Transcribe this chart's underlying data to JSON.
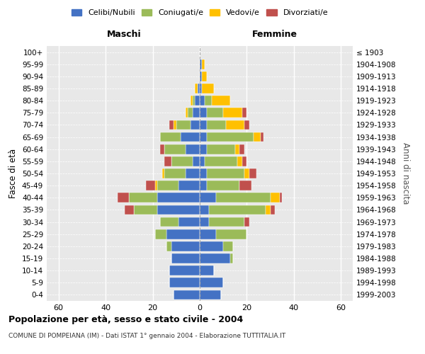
{
  "age_groups": [
    "0-4",
    "5-9",
    "10-14",
    "15-19",
    "20-24",
    "25-29",
    "30-34",
    "35-39",
    "40-44",
    "45-49",
    "50-54",
    "55-59",
    "60-64",
    "65-69",
    "70-74",
    "75-79",
    "80-84",
    "85-89",
    "90-94",
    "95-99",
    "100+"
  ],
  "birth_years": [
    "1999-2003",
    "1994-1998",
    "1989-1993",
    "1984-1988",
    "1979-1983",
    "1974-1978",
    "1969-1973",
    "1964-1968",
    "1959-1963",
    "1954-1958",
    "1949-1953",
    "1944-1948",
    "1939-1943",
    "1934-1938",
    "1929-1933",
    "1924-1928",
    "1919-1923",
    "1914-1918",
    "1909-1913",
    "1904-1908",
    "≤ 1903"
  ],
  "colors": {
    "celibi": "#4472C4",
    "coniugati": "#9BBB59",
    "vedovi": "#FFC000",
    "divorziati": "#C0504D"
  },
  "males": {
    "celibi": [
      11,
      13,
      13,
      12,
      12,
      14,
      9,
      18,
      18,
      9,
      6,
      3,
      6,
      8,
      4,
      3,
      2,
      1,
      0,
      0,
      0
    ],
    "coniugati": [
      0,
      0,
      0,
      0,
      2,
      5,
      8,
      10,
      12,
      9,
      9,
      9,
      9,
      9,
      6,
      2,
      1,
      0,
      0,
      0,
      0
    ],
    "vedovi": [
      0,
      0,
      0,
      0,
      0,
      0,
      0,
      0,
      0,
      1,
      1,
      0,
      0,
      0,
      1,
      1,
      1,
      1,
      0,
      0,
      0
    ],
    "divorziati": [
      0,
      0,
      0,
      0,
      0,
      0,
      0,
      4,
      5,
      4,
      0,
      3,
      2,
      0,
      2,
      0,
      0,
      0,
      0,
      0,
      0
    ]
  },
  "females": {
    "celibi": [
      9,
      10,
      6,
      13,
      10,
      7,
      4,
      4,
      7,
      3,
      3,
      2,
      3,
      3,
      3,
      3,
      2,
      1,
      1,
      1,
      0
    ],
    "coniugati": [
      0,
      0,
      0,
      1,
      4,
      13,
      15,
      24,
      23,
      14,
      16,
      14,
      12,
      20,
      8,
      7,
      3,
      0,
      0,
      0,
      0
    ],
    "vedovi": [
      0,
      0,
      0,
      0,
      0,
      0,
      0,
      2,
      4,
      0,
      2,
      2,
      2,
      3,
      8,
      8,
      8,
      5,
      2,
      1,
      0
    ],
    "divorziati": [
      0,
      0,
      0,
      0,
      0,
      0,
      2,
      2,
      1,
      5,
      3,
      2,
      2,
      1,
      2,
      2,
      0,
      0,
      0,
      0,
      0
    ]
  },
  "title": "Popolazione per età, sesso e stato civile - 2004",
  "subtitle": "COMUNE DI POMPEIANA (IM) - Dati ISTAT 1° gennaio 2004 - Elaborazione TUTTITALIA.IT",
  "xlabel_left": "Maschi",
  "xlabel_right": "Femmine",
  "ylabel_left": "Fasce di età",
  "ylabel_right": "Anni di nascita",
  "xlim": 65,
  "legend_labels": [
    "Celibi/Nubili",
    "Coniugati/e",
    "Vedovi/e",
    "Divorziati/e"
  ],
  "bg_color": "#e8e8e8",
  "fig_bg": "#ffffff"
}
